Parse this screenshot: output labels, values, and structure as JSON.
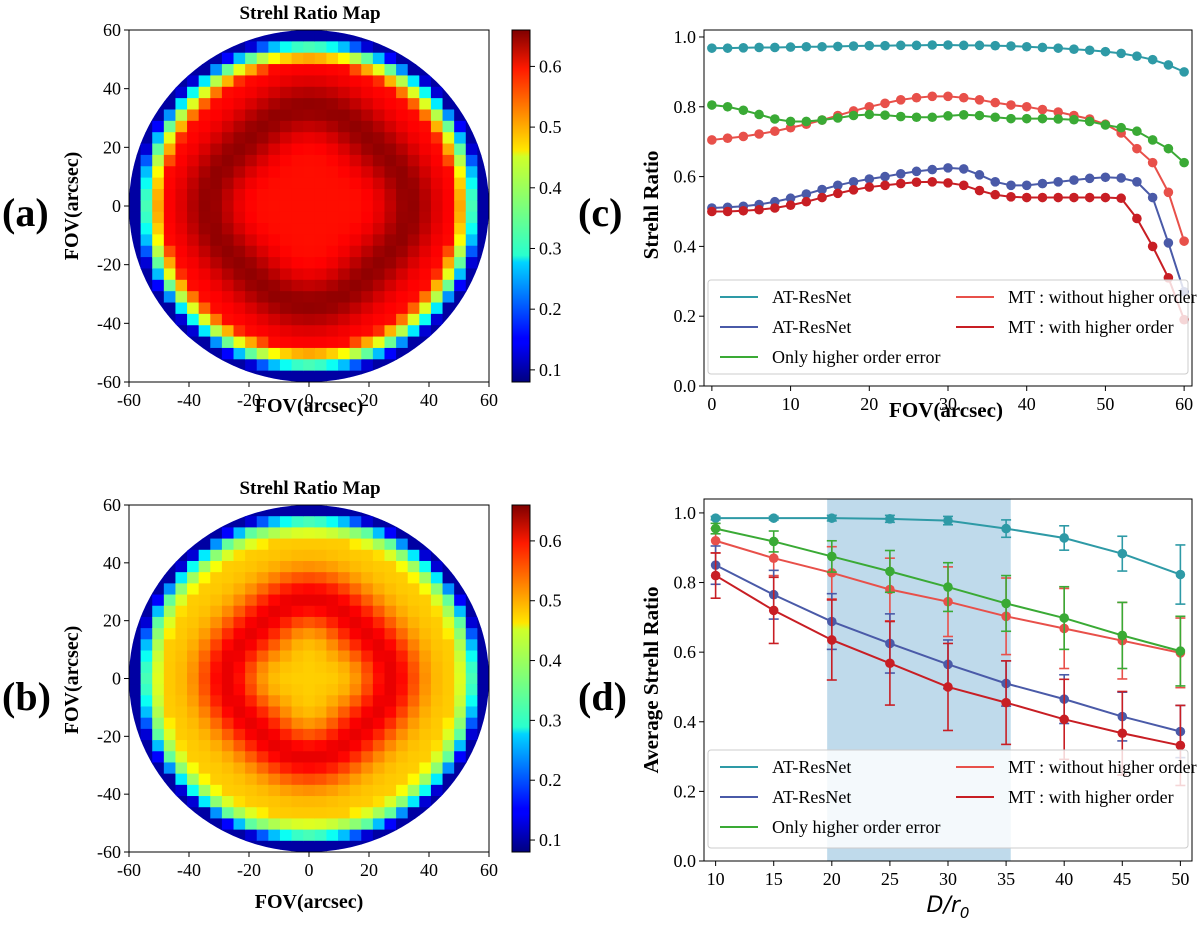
{
  "panel_labels": {
    "a": "(a)",
    "b": "(b)",
    "c": "(c)",
    "d": "(d)"
  },
  "colors": {
    "teal": "#2e9aa6",
    "blue": "#4a5aa8",
    "light_red": "#e8504a",
    "dark_red": "#c81e24",
    "green": "#3aaa35",
    "shade": "#bcd8ea"
  },
  "chart_data": [
    {
      "id": "a",
      "type": "heatmap",
      "title": "Strehl Ratio Map",
      "xlabel": "FOV(arcsec)",
      "ylabel": "FOV(arcsec)",
      "xlim": [
        -60,
        60
      ],
      "ylim": [
        -60,
        60
      ],
      "xticks": [
        "-60",
        "-40",
        "-20",
        "0",
        "20",
        "40",
        "60"
      ],
      "yticks": [
        "60",
        "40",
        "20",
        "0",
        "-20",
        "-40",
        "-60"
      ],
      "colorbar": {
        "min": 0.08,
        "max": 0.66,
        "ticks": [
          "0.6",
          "0.5",
          "0.4",
          "0.3",
          "0.2",
          "0.1"
        ]
      },
      "field": {
        "grid": 31,
        "center": 0.58,
        "ring": 0.65,
        "ring_radius": 32,
        "ring_width": 9,
        "ring_anisotropy": 0.05,
        "edge": 0.1
      }
    },
    {
      "id": "b",
      "type": "heatmap",
      "title": "Strehl Ratio Map",
      "xlabel": "FOV(arcsec)",
      "ylabel": "FOV(arcsec)",
      "xlim": [
        -60,
        60
      ],
      "ylim": [
        -60,
        60
      ],
      "xticks": [
        "-60",
        "-40",
        "-20",
        "0",
        "20",
        "40",
        "60"
      ],
      "yticks": [
        "60",
        "40",
        "20",
        "0",
        "-20",
        "-40",
        "-60"
      ],
      "colorbar": {
        "min": 0.08,
        "max": 0.66,
        "ticks": [
          "0.6",
          "0.5",
          "0.4",
          "0.3",
          "0.2",
          "0.1"
        ]
      },
      "field": {
        "grid": 31,
        "center": 0.47,
        "ring": 0.6,
        "ring_radius": 26,
        "ring_width": 10,
        "ring_anisotropy": 0.05,
        "edge": 0.1
      }
    },
    {
      "id": "c",
      "type": "line",
      "xlabel": "FOV(arcsec)",
      "ylabel": "Strehl Ratio",
      "xlim": [
        -1,
        61
      ],
      "ylim": [
        0,
        1.02
      ],
      "xticks": [
        "0",
        "10",
        "20",
        "30",
        "40",
        "50",
        "60"
      ],
      "yticks": [
        "0.0",
        "0.2",
        "0.4",
        "0.6",
        "0.8",
        "1.0"
      ],
      "x": [
        0,
        2,
        4,
        6,
        8,
        10,
        12,
        14,
        16,
        18,
        20,
        22,
        24,
        26,
        28,
        30,
        32,
        34,
        36,
        38,
        40,
        42,
        44,
        46,
        48,
        50,
        52,
        54,
        56,
        58,
        60
      ],
      "series": [
        {
          "name": "AT-ResNet",
          "color": "teal",
          "values": [
            0.968,
            0.968,
            0.969,
            0.97,
            0.97,
            0.971,
            0.972,
            0.972,
            0.973,
            0.974,
            0.975,
            0.975,
            0.976,
            0.976,
            0.977,
            0.977,
            0.976,
            0.976,
            0.975,
            0.974,
            0.972,
            0.97,
            0.968,
            0.965,
            0.962,
            0.958,
            0.953,
            0.945,
            0.935,
            0.92,
            0.9
          ]
        },
        {
          "name": "MT : without higher order",
          "color": "light_red",
          "values": [
            0.705,
            0.71,
            0.715,
            0.722,
            0.73,
            0.74,
            0.75,
            0.762,
            0.775,
            0.788,
            0.8,
            0.81,
            0.82,
            0.826,
            0.83,
            0.83,
            0.826,
            0.82,
            0.812,
            0.805,
            0.8,
            0.792,
            0.785,
            0.775,
            0.765,
            0.75,
            0.725,
            0.68,
            0.64,
            0.555,
            0.415
          ]
        },
        {
          "name": "Only higher order error",
          "color": "green",
          "values": [
            0.805,
            0.8,
            0.79,
            0.778,
            0.765,
            0.758,
            0.758,
            0.762,
            0.768,
            0.775,
            0.778,
            0.776,
            0.772,
            0.77,
            0.77,
            0.774,
            0.777,
            0.775,
            0.77,
            0.766,
            0.766,
            0.766,
            0.765,
            0.763,
            0.758,
            0.748,
            0.74,
            0.73,
            0.705,
            0.68,
            0.64
          ]
        },
        {
          "name": "AT-ResNet",
          "color": "blue",
          "values": [
            0.51,
            0.512,
            0.515,
            0.52,
            0.528,
            0.538,
            0.55,
            0.563,
            0.575,
            0.585,
            0.593,
            0.6,
            0.608,
            0.615,
            0.62,
            0.625,
            0.622,
            0.605,
            0.585,
            0.575,
            0.575,
            0.58,
            0.585,
            0.59,
            0.595,
            0.598,
            0.596,
            0.585,
            0.54,
            0.41,
            0.27
          ]
        },
        {
          "name": "MT : with higher order",
          "color": "dark_red",
          "values": [
            0.5,
            0.5,
            0.502,
            0.505,
            0.51,
            0.518,
            0.528,
            0.54,
            0.552,
            0.562,
            0.57,
            0.575,
            0.58,
            0.584,
            0.585,
            0.582,
            0.575,
            0.56,
            0.548,
            0.542,
            0.54,
            0.54,
            0.54,
            0.54,
            0.54,
            0.54,
            0.538,
            0.48,
            0.4,
            0.31,
            0.19
          ]
        }
      ],
      "legend": {
        "placement": "lower-left",
        "entries": [
          {
            "label": "AT-ResNet",
            "color": "teal"
          },
          {
            "label": "MT : without higher order",
            "color": "light_red"
          },
          {
            "label": "AT-ResNet",
            "color": "blue"
          },
          {
            "label": "MT : with higher order",
            "color": "dark_red"
          },
          {
            "label": "Only higher order error",
            "color": "green"
          }
        ]
      }
    },
    {
      "id": "d",
      "type": "line",
      "xlabel": "D/r0",
      "xlabel_main": "D/r",
      "xlabel_sub": "0",
      "ylabel": "Average Strehl Ratio",
      "xlim": [
        9,
        51
      ],
      "ylim": [
        0,
        1.04
      ],
      "xticks": [
        "10",
        "15",
        "20",
        "25",
        "30",
        "35",
        "40",
        "45",
        "50"
      ],
      "yticks": [
        "0.0",
        "0.2",
        "0.4",
        "0.6",
        "0.8",
        "1.0"
      ],
      "shaded_region": [
        19.6,
        35.4
      ],
      "x": [
        10,
        15,
        20,
        25,
        30,
        35,
        40,
        45,
        50
      ],
      "series": [
        {
          "name": "AT-ResNet",
          "color": "teal",
          "values": [
            0.985,
            0.985,
            0.985,
            0.983,
            0.978,
            0.955,
            0.928,
            0.883,
            0.823
          ],
          "errors": [
            0.005,
            0.005,
            0.008,
            0.01,
            0.012,
            0.025,
            0.035,
            0.05,
            0.085
          ]
        },
        {
          "name": "MT : without higher order",
          "color": "light_red",
          "values": [
            0.92,
            0.87,
            0.828,
            0.78,
            0.745,
            0.703,
            0.668,
            0.633,
            0.598
          ],
          "errors": [
            0.035,
            0.05,
            0.075,
            0.09,
            0.1,
            0.11,
            0.115,
            0.11,
            0.1
          ]
        },
        {
          "name": "Only higher order error",
          "color": "green",
          "values": [
            0.955,
            0.918,
            0.875,
            0.832,
            0.787,
            0.74,
            0.698,
            0.648,
            0.603
          ],
          "errors": [
            0.015,
            0.03,
            0.045,
            0.06,
            0.07,
            0.08,
            0.09,
            0.095,
            0.1
          ]
        },
        {
          "name": "AT-ResNet",
          "color": "blue",
          "values": [
            0.85,
            0.765,
            0.688,
            0.625,
            0.565,
            0.51,
            0.465,
            0.415,
            0.372
          ],
          "errors": [
            0.055,
            0.07,
            0.08,
            0.085,
            0.07,
            0.065,
            0.07,
            0.07,
            0.075
          ]
        },
        {
          "name": "MT : with higher order",
          "color": "dark_red",
          "values": [
            0.82,
            0.72,
            0.635,
            0.568,
            0.5,
            0.455,
            0.407,
            0.367,
            0.332
          ],
          "errors": [
            0.065,
            0.095,
            0.115,
            0.12,
            0.125,
            0.12,
            0.115,
            0.12,
            0.115
          ]
        }
      ],
      "legend": {
        "placement": "lower-left",
        "entries": [
          {
            "label": "AT-ResNet",
            "color": "teal"
          },
          {
            "label": "MT : without higher order",
            "color": "light_red"
          },
          {
            "label": "AT-ResNet",
            "color": "blue"
          },
          {
            "label": "MT : with higher order",
            "color": "dark_red"
          },
          {
            "label": "Only higher order error",
            "color": "green"
          }
        ]
      }
    }
  ]
}
